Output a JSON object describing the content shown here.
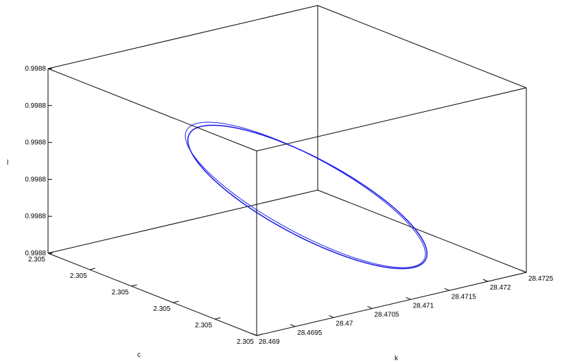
{
  "chart_data": {
    "type": "line3d",
    "title": "",
    "xlabel": "k",
    "ylabel": "c",
    "zlabel": "l",
    "x_ticks": [
      "28.469",
      "28.4695",
      "28.47",
      "28.4705",
      "28.471",
      "28.4715",
      "28.472",
      "28.4725"
    ],
    "y_ticks": [
      "2.305",
      "2.305",
      "2.305",
      "2.305",
      "2.305",
      "2.305"
    ],
    "z_ticks": [
      "0.9988",
      "0.9988",
      "0.9988",
      "0.9988",
      "0.9988",
      "0.9988"
    ],
    "xlim": [
      28.469,
      28.4725
    ],
    "ylim": [
      0,
      1
    ],
    "zlim": [
      0,
      1
    ],
    "grid": false,
    "box": true,
    "series": [
      {
        "color": "#1f1fe8",
        "shape": "closed-orbit",
        "description_free": true,
        "loops": 2
      }
    ]
  }
}
